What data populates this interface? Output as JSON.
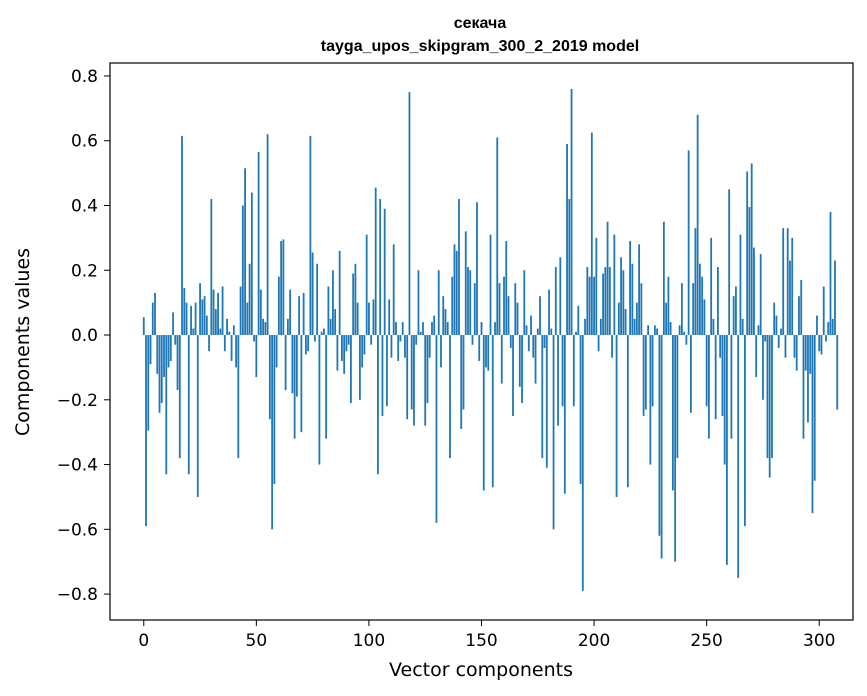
{
  "chart_data": {
    "type": "bar",
    "title_lines": [
      "секача",
      "tayga_upos_skipgram_300_2_2019 model"
    ],
    "xlabel": "Vector components",
    "ylabel": "Components values",
    "xlim": [
      -15,
      315
    ],
    "ylim": [
      -0.88,
      0.84
    ],
    "xticks": [
      0,
      50,
      100,
      150,
      200,
      250,
      300
    ],
    "yticks": [
      -0.8,
      -0.6,
      -0.4,
      -0.2,
      0.0,
      0.2,
      0.4,
      0.6,
      0.8
    ],
    "ytick_labels": [
      "−0.8",
      "−0.6",
      "−0.4",
      "−0.2",
      "0.0",
      "0.2",
      "0.4",
      "0.6",
      "0.8"
    ],
    "grid": false,
    "bar_color": "#1f77b4",
    "values": [
      0.055,
      -0.59,
      -0.295,
      -0.09,
      0.1,
      0.13,
      -0.12,
      -0.24,
      -0.21,
      -0.13,
      -0.43,
      -0.1,
      -0.08,
      0.07,
      -0.03,
      -0.17,
      -0.38,
      0.615,
      0.145,
      0.1,
      -0.43,
      0.09,
      0.02,
      0.1,
      -0.5,
      0.16,
      0.11,
      0.12,
      0.06,
      -0.05,
      0.42,
      0.14,
      0.08,
      0.13,
      0.02,
      0.15,
      -0.05,
      0.05,
      0.01,
      -0.08,
      0.03,
      -0.1,
      -0.38,
      0.15,
      0.4,
      0.515,
      0.1,
      0.22,
      0.44,
      -0.02,
      -0.13,
      0.565,
      0.14,
      0.05,
      0.04,
      0.62,
      -0.26,
      -0.6,
      -0.46,
      -0.1,
      0.18,
      0.29,
      0.295,
      -0.17,
      0.05,
      0.14,
      -0.18,
      -0.32,
      -0.19,
      0.12,
      -0.3,
      0.13,
      -0.06,
      -0.05,
      0.615,
      0.255,
      -0.02,
      0.22,
      -0.4,
      0.01,
      0.02,
      -0.32,
      0.15,
      0.05,
      0.2,
      0.08,
      -0.11,
      0.26,
      -0.08,
      -0.12,
      -0.05,
      -0.03,
      -0.21,
      0.19,
      0.22,
      0.1,
      -0.2,
      -0.1,
      -0.06,
      0.31,
      0.1,
      -0.03,
      0.11,
      0.455,
      -0.43,
      0.42,
      -0.25,
      0.39,
      -0.22,
      0.11,
      -0.07,
      0.28,
      0.04,
      -0.08,
      -0.02,
      0.04,
      -0.07,
      -0.26,
      0.75,
      -0.23,
      -0.28,
      -0.03,
      0.2,
      0.01,
      0.04,
      -0.28,
      -0.21,
      -0.07,
      0.04,
      0.06,
      -0.58,
      0.2,
      -0.1,
      0.12,
      0.08,
      0.04,
      -0.38,
      0.18,
      0.28,
      0.26,
      0.42,
      -0.29,
      -0.23,
      0.32,
      0.21,
      0.2,
      -0.03,
      0.16,
      0.41,
      -0.08,
      0.04,
      -0.48,
      -0.1,
      -0.11,
      0.31,
      -0.47,
      0.04,
      0.61,
      0.16,
      -0.15,
      0.18,
      0.29,
      0.12,
      -0.04,
      -0.25,
      0.16,
      0.1,
      -0.16,
      -0.21,
      0.2,
      0.03,
      -0.05,
      0.06,
      -0.07,
      -0.15,
      0.02,
      0.12,
      -0.38,
      -0.04,
      -0.41,
      0.14,
      0.02,
      -0.6,
      0.21,
      -0.28,
      0.24,
      -0.22,
      -0.49,
      0.59,
      0.42,
      0.76,
      -0.22,
      0.01,
      0.09,
      -0.46,
      -0.79,
      0.05,
      0.21,
      0.18,
      0.625,
      0.18,
      0.3,
      -0.05,
      0.05,
      0.19,
      0.21,
      0.35,
      0.21,
      -0.07,
      0.31,
      -0.5,
      0.1,
      0.24,
      0.2,
      0.08,
      -0.47,
      0.29,
      0.22,
      0.05,
      0.1,
      0.28,
      0.16,
      -0.25,
      -0.23,
      0.03,
      -0.4,
      -0.22,
      0.03,
      0.02,
      -0.62,
      -0.69,
      0.35,
      0.1,
      0.18,
      0.04,
      -0.48,
      -0.7,
      -0.38,
      0.03,
      0.16,
      0.01,
      -0.03,
      0.57,
      -0.24,
      0.16,
      0.33,
      0.68,
      0.22,
      0.18,
      0.11,
      -0.22,
      -0.32,
      0.3,
      0.05,
      -0.26,
      0.21,
      -0.07,
      -0.25,
      -0.4,
      -0.71,
      0.45,
      -0.32,
      0.12,
      0.15,
      -0.75,
      0.31,
      0.05,
      -0.59,
      0.505,
      0.395,
      0.53,
      0.27,
      -0.13,
      0.03,
      0.25,
      -0.2,
      -0.02,
      -0.38,
      -0.44,
      -0.38,
      0.1,
      0.06,
      -0.04,
      0.02,
      0.33,
      -0.07,
      0.33,
      0.23,
      0.3,
      -0.07,
      -0.11,
      0.12,
      0.17,
      -0.32,
      -0.11,
      -0.27,
      -0.12,
      -0.55,
      -0.45,
      0.06,
      -0.05,
      -0.06,
      0.15,
      -0.02,
      0.04,
      0.38,
      0.05,
      0.23,
      -0.23
    ]
  }
}
